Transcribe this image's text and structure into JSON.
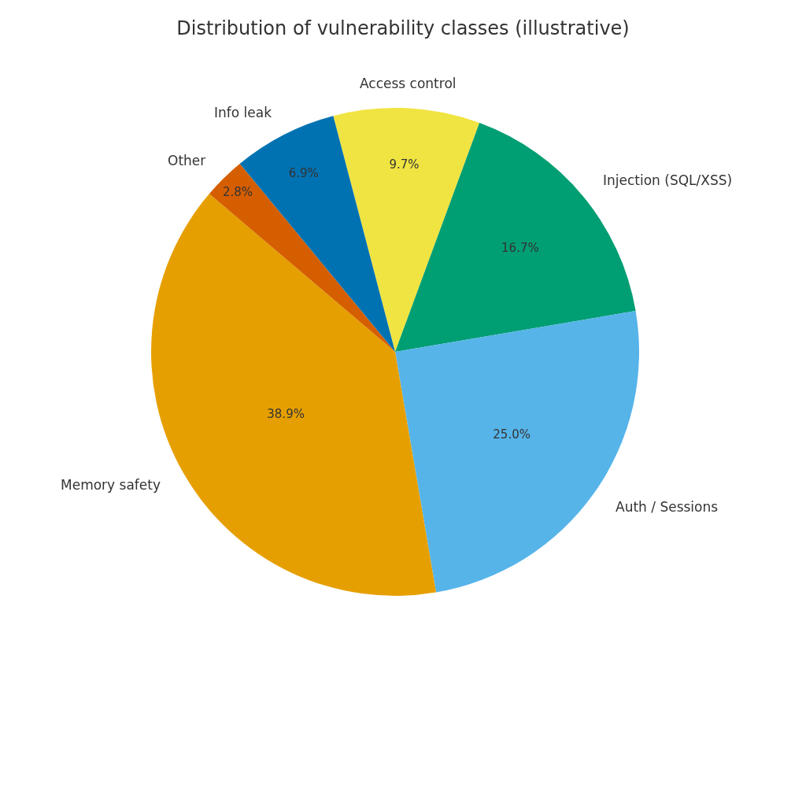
{
  "chart_data": {
    "type": "pie",
    "title": "Distribution of vulnerability classes (illustrative)",
    "categories": [
      "Access control",
      "Injection (SQL/XSS)",
      "Auth / Sessions",
      "Memory safety",
      "Other",
      "Info leak"
    ],
    "values": [
      9.7,
      16.7,
      25.0,
      38.9,
      2.8,
      6.9
    ],
    "value_labels": [
      "9.7%",
      "16.7%",
      "25.0%",
      "38.9%",
      "2.8%",
      "6.9%"
    ],
    "colors": [
      "#f0e442",
      "#009e73",
      "#56b4e9",
      "#e69f00",
      "#d55e00",
      "#0072b2"
    ],
    "legend": false
  }
}
